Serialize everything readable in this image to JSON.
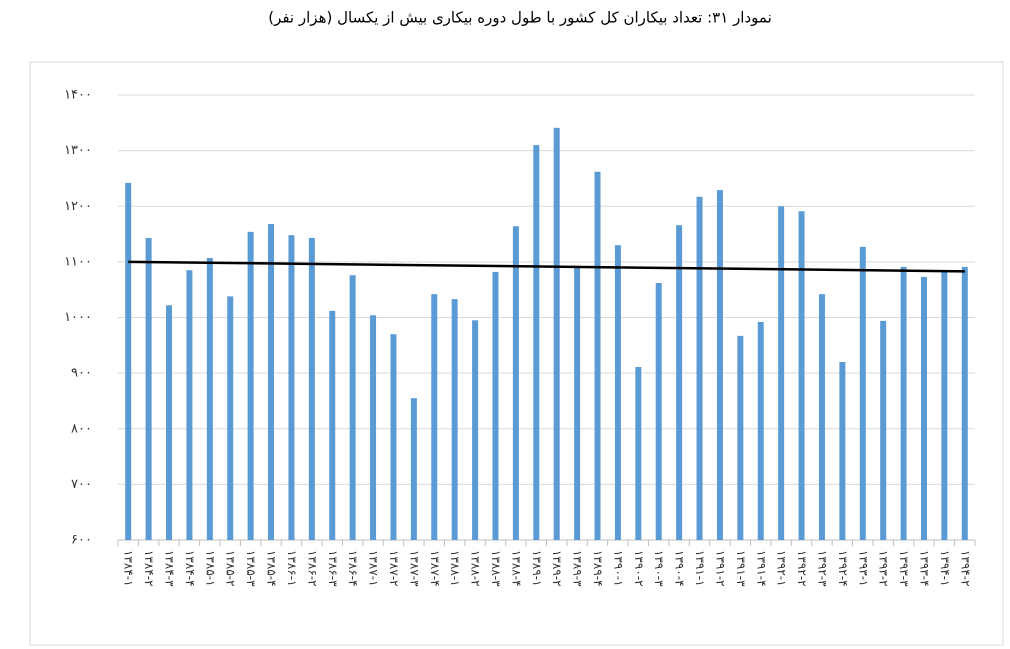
{
  "chart_data": {
    "type": "bar",
    "title": "نمودار ۳۱: تعداد بیکاران کل کشور با طول دوره بیکاری بیش از یکسال (هزار نفر)",
    "categories": [
      "۱۳۸۴-۱",
      "۱۳۸۴-۲",
      "۱۳۸۴-۳",
      "۱۳۸۴-۴",
      "۱۳۸۵-۱",
      "۱۳۸۵-۲",
      "۱۳۸۵-۳",
      "۱۳۸۵-۴",
      "۱۳۸۶-۱",
      "۱۳۸۶-۲",
      "۱۳۸۶-۳",
      "۱۳۸۶-۴",
      "۱۳۸۷-۱",
      "۱۳۸۷-۲",
      "۱۳۸۷-۳",
      "۱۳۸۷-۴",
      "۱۳۸۸-۱",
      "۱۳۸۸-۲",
      "۱۳۸۸-۳",
      "۱۳۸۸-۴",
      "۱۳۸۹-۱",
      "۱۳۸۹-۲",
      "۱۳۸۹-۳",
      "۱۳۸۹-۴",
      "۱۳۹۰-۱",
      "۱۳۹۰-۲",
      "۱۳۹۰-۳",
      "۱۳۹۰-۴",
      "۱۳۹۱-۱",
      "۱۳۹۱-۲",
      "۱۳۹۱-۳",
      "۱۳۹۱-۴",
      "۱۳۹۲-۱",
      "۱۳۹۲-۲",
      "۱۳۹۲-۳",
      "۱۳۹۲-۴",
      "۱۳۹۳-۱",
      "۱۳۹۳-۲",
      "۱۳۹۳-۳",
      "۱۳۹۳-۴",
      "۱۳۹۴-۱",
      "۱۳۹۴-۲"
    ],
    "values": [
      1242,
      1143,
      1022,
      1085,
      1107,
      1038,
      1154,
      1168,
      1148,
      1143,
      1012,
      1076,
      1004,
      970,
      855,
      1042,
      1033,
      995,
      1082,
      1164,
      1310,
      1341,
      1089,
      1262,
      1130,
      911,
      1062,
      1166,
      1217,
      1229,
      967,
      992,
      1200,
      1191,
      1042,
      920,
      1127,
      994,
      1091,
      1073,
      1083,
      1091
    ],
    "color": "#5b9bd5",
    "trend": [
      1100,
      1083
    ],
    "trend_color": "#000000",
    "ylim": [
      600,
      1400
    ],
    "yticks": [
      {
        "value": 600,
        "label": "۶۰۰"
      },
      {
        "value": 700,
        "label": "۷۰۰"
      },
      {
        "value": 800,
        "label": "۸۰۰"
      },
      {
        "value": 900,
        "label": "۹۰۰"
      },
      {
        "value": 1000,
        "label": "۱۰۰۰"
      },
      {
        "value": 1100,
        "label": "۱۱۰۰"
      },
      {
        "value": 1200,
        "label": "۱۲۰۰"
      },
      {
        "value": 1300,
        "label": "۱۳۰۰"
      },
      {
        "value": 1400,
        "label": "۱۴۰۰"
      }
    ],
    "grid": true
  }
}
